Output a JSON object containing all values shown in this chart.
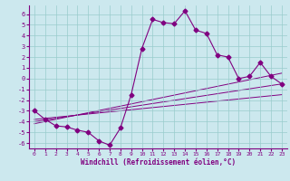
{
  "xlabel": "Windchill (Refroidissement éolien,°C)",
  "bg_color": "#cce8ee",
  "line_color": "#800080",
  "grid_color": "#99cccc",
  "xlim": [
    -0.5,
    23.5
  ],
  "ylim": [
    -6.5,
    6.8
  ],
  "xticks": [
    0,
    1,
    2,
    3,
    4,
    5,
    6,
    7,
    8,
    9,
    10,
    11,
    12,
    13,
    14,
    15,
    16,
    17,
    18,
    19,
    20,
    21,
    22,
    23
  ],
  "yticks": [
    -6,
    -5,
    -4,
    -3,
    -2,
    -1,
    0,
    1,
    2,
    3,
    4,
    5,
    6
  ],
  "series_main": {
    "x": [
      0,
      1,
      2,
      3,
      4,
      5,
      6,
      7,
      8,
      9,
      10,
      11,
      12,
      13,
      14,
      15,
      16,
      17,
      18,
      19,
      20,
      21,
      22,
      23
    ],
    "y": [
      -3,
      -3.8,
      -4.4,
      -4.5,
      -4.8,
      -5.0,
      -5.8,
      -6.2,
      -4.6,
      -1.5,
      2.8,
      5.5,
      5.2,
      5.1,
      6.3,
      4.5,
      4.2,
      2.2,
      2.0,
      0.0,
      0.2,
      1.5,
      0.2,
      -0.5
    ]
  },
  "lines": [
    {
      "x": [
        0,
        23
      ],
      "y": [
        -4.0,
        -0.5
      ]
    },
    {
      "x": [
        0,
        23
      ],
      "y": [
        -4.2,
        0.5
      ]
    },
    {
      "x": [
        0,
        23
      ],
      "y": [
        -3.8,
        -1.5
      ]
    }
  ]
}
